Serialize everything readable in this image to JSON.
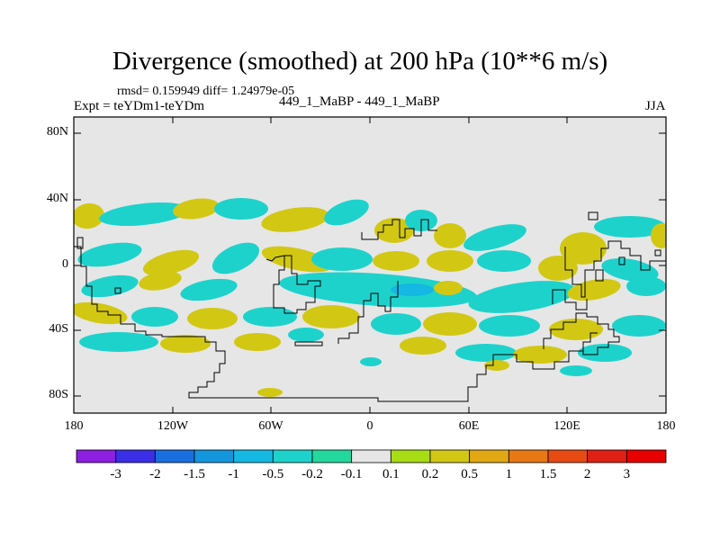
{
  "header": {
    "title": "Divergence (smoothed) at 200 hPa (10**6 m/s)",
    "stats": "rmsd= 0.159949 diff= 1.24979e-05",
    "expt": "Expt = teYDm1-teYDm",
    "case": "449_1_MaBP - 449_1_MaBP",
    "season": "JJA"
  },
  "map": {
    "lat_labels": [
      "80N",
      "40N",
      "0",
      "40S",
      "80S"
    ],
    "lon_labels": [
      "180",
      "120W",
      "60W",
      "0",
      "60E",
      "120E",
      "180"
    ],
    "lat_range": [
      -90,
      90
    ],
    "lon_range": [
      -180,
      180
    ],
    "background_color": "#e6e6e6"
  },
  "colorbar": {
    "levels": [
      "-3",
      "-2",
      "-1.5",
      "-1",
      "-0.5",
      "-0.2",
      "-0.1",
      "0.1",
      "0.2",
      "0.5",
      "1",
      "1.5",
      "2",
      "3"
    ],
    "colors": [
      "#8c1fe0",
      "#3a2ee6",
      "#1a6fe0",
      "#1496dd",
      "#14b8e2",
      "#1ed2cc",
      "#22d89c",
      "#e6e6e6",
      "#a8dc14",
      "#d2c814",
      "#e2a814",
      "#e87814",
      "#e84a14",
      "#e02014",
      "#e80000"
    ]
  }
}
